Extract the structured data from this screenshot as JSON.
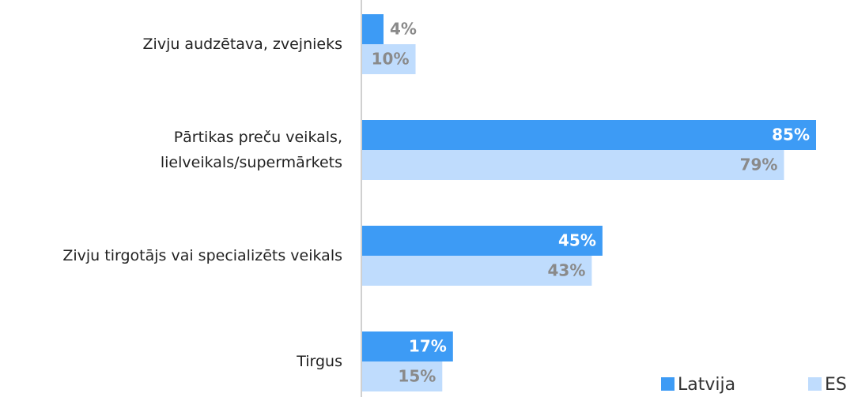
{
  "chart_data": {
    "type": "hbar",
    "categories": [
      "Zivju audzētava, zvejnieks",
      "Pārtikas preču veikals,\nlielveikals/supermārkets",
      "Zivju tirgotājs vai specializēts veikals",
      "Tirgus"
    ],
    "series": [
      {
        "name": "Latvija",
        "color": "#3d9bf5",
        "values": [
          4,
          85,
          45,
          17
        ],
        "value_labels": [
          "4%",
          "85%",
          "45%",
          "17%"
        ]
      },
      {
        "name": "ES",
        "color": "#bfdcfd",
        "values": [
          10,
          79,
          43,
          15
        ],
        "value_labels": [
          "10%",
          "79%",
          "43%",
          "15%"
        ]
      }
    ],
    "legend": "bottom-right"
  }
}
